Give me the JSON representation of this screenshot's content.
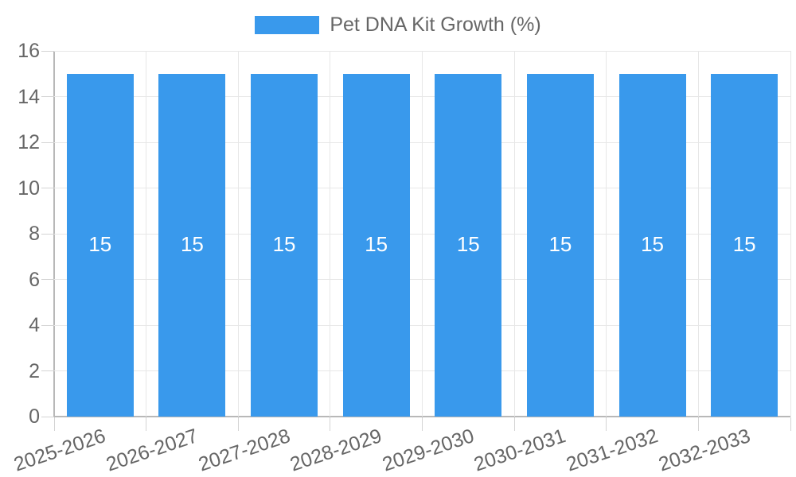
{
  "chart_data": {
    "type": "bar",
    "title": "Pet DNA Kit Growth (%)",
    "legend": {
      "position": "top",
      "label": "Pet DNA Kit Growth (%)"
    },
    "categories": [
      "2025-2026",
      "2026-2027",
      "2027-2028",
      "2028-2029",
      "2029-2030",
      "2030-2031",
      "2031-2032",
      "2032-2033"
    ],
    "series": [
      {
        "name": "Pet DNA Kit Growth (%)",
        "values": [
          15,
          15,
          15,
          15,
          15,
          15,
          15,
          15
        ]
      }
    ],
    "value_labels": [
      "15",
      "15",
      "15",
      "15",
      "15",
      "15",
      "15",
      "15"
    ],
    "xlabel": "",
    "ylabel": "",
    "ylim": [
      0,
      16
    ],
    "yticks": [
      0,
      2,
      4,
      6,
      8,
      10,
      12,
      14,
      16
    ],
    "grid": true,
    "colors": {
      "bar": "#3999EC",
      "bar_value_text": "#FFFFFF",
      "grid_line": "#E7E7E7",
      "axis_line": "#B8B8B8",
      "tick_mark": "#D4D4D4",
      "tick_text": "#666666",
      "background": "#FFFFFF"
    }
  }
}
